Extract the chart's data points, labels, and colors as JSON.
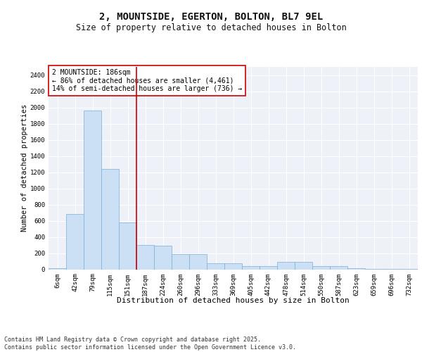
{
  "title": "2, MOUNTSIDE, EGERTON, BOLTON, BL7 9EL",
  "subtitle": "Size of property relative to detached houses in Bolton",
  "xlabel": "Distribution of detached houses by size in Bolton",
  "ylabel": "Number of detached properties",
  "categories": [
    "6sqm",
    "42sqm",
    "79sqm",
    "115sqm",
    "151sqm",
    "187sqm",
    "224sqm",
    "260sqm",
    "296sqm",
    "333sqm",
    "369sqm",
    "405sqm",
    "442sqm",
    "478sqm",
    "514sqm",
    "550sqm",
    "587sqm",
    "623sqm",
    "659sqm",
    "696sqm",
    "732sqm"
  ],
  "values": [
    10,
    680,
    1960,
    1240,
    580,
    300,
    295,
    190,
    190,
    75,
    75,
    40,
    40,
    95,
    95,
    40,
    40,
    12,
    8,
    4,
    4
  ],
  "bar_color": "#cce0f5",
  "bar_edge_color": "#7bafd4",
  "vline_color": "#cc0000",
  "annotation_text": "2 MOUNTSIDE: 186sqm\n← 86% of detached houses are smaller (4,461)\n14% of semi-detached houses are larger (736) →",
  "annotation_box_color": "#cc0000",
  "footer_text": "Contains HM Land Registry data © Crown copyright and database right 2025.\nContains public sector information licensed under the Open Government Licence v3.0.",
  "background_color": "#eef2f8",
  "ylim": [
    0,
    2500
  ],
  "yticks": [
    0,
    200,
    400,
    600,
    800,
    1000,
    1200,
    1400,
    1600,
    1800,
    2000,
    2200,
    2400
  ],
  "title_fontsize": 10,
  "subtitle_fontsize": 8.5,
  "xlabel_fontsize": 8,
  "ylabel_fontsize": 7.5,
  "tick_fontsize": 6.5,
  "annotation_fontsize": 7,
  "footer_fontsize": 6
}
